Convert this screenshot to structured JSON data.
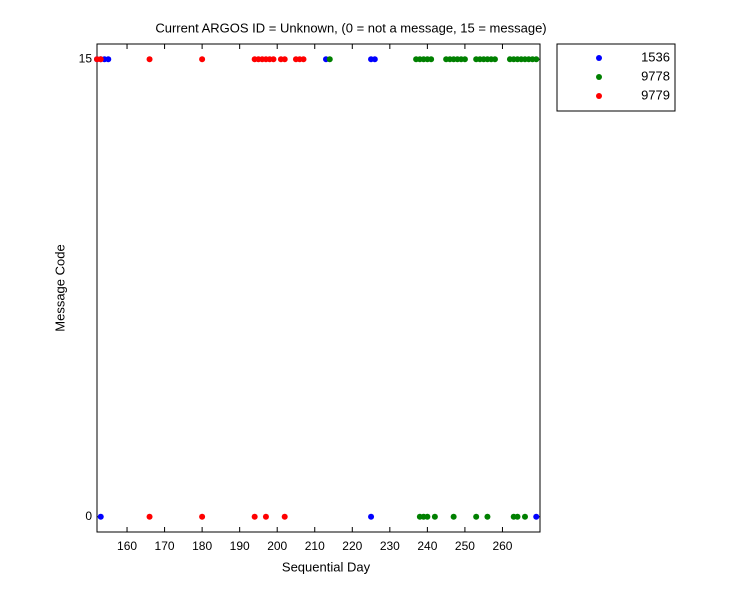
{
  "chart_data": {
    "type": "scatter",
    "title": "Current ARGOS ID = Unknown,  (0 = not a message, 15 = message)",
    "x_label": "Sequential Day",
    "y_label": "Message Code",
    "xlim": [
      152,
      270
    ],
    "ylim": [
      -0.5,
      15.5
    ],
    "xticks": [
      160,
      170,
      180,
      190,
      200,
      210,
      220,
      230,
      240,
      250,
      260
    ],
    "yticks": [
      0,
      15
    ],
    "legend": "outside-upper-right",
    "series": [
      {
        "name": "1536",
        "color": "#0000ff",
        "x": [
          152,
          153,
          154,
          155,
          213,
          225,
          226,
          153,
          225,
          269
        ],
        "values": [
          15,
          15,
          15,
          15,
          15,
          15,
          15,
          0,
          0,
          0
        ]
      },
      {
        "name": "9778",
        "color": "#008000",
        "x": [
          214,
          237,
          238,
          239,
          240,
          241,
          245,
          246,
          247,
          248,
          249,
          250,
          253,
          254,
          255,
          256,
          257,
          258,
          262,
          263,
          264,
          265,
          266,
          267,
          268,
          269,
          238,
          239,
          240,
          242,
          247,
          253,
          256,
          263,
          264,
          266
        ],
        "values": [
          15,
          15,
          15,
          15,
          15,
          15,
          15,
          15,
          15,
          15,
          15,
          15,
          15,
          15,
          15,
          15,
          15,
          15,
          15,
          15,
          15,
          15,
          15,
          15,
          15,
          15,
          0,
          0,
          0,
          0,
          0,
          0,
          0,
          0,
          0,
          0
        ]
      },
      {
        "name": "9779",
        "color": "#ff0000",
        "x": [
          152,
          153,
          166,
          180,
          194,
          195,
          196,
          197,
          198,
          199,
          201,
          202,
          205,
          206,
          207,
          166,
          180,
          194,
          197,
          202
        ],
        "values": [
          15,
          15,
          15,
          15,
          15,
          15,
          15,
          15,
          15,
          15,
          15,
          15,
          15,
          15,
          15,
          0,
          0,
          0,
          0,
          0
        ]
      }
    ]
  }
}
